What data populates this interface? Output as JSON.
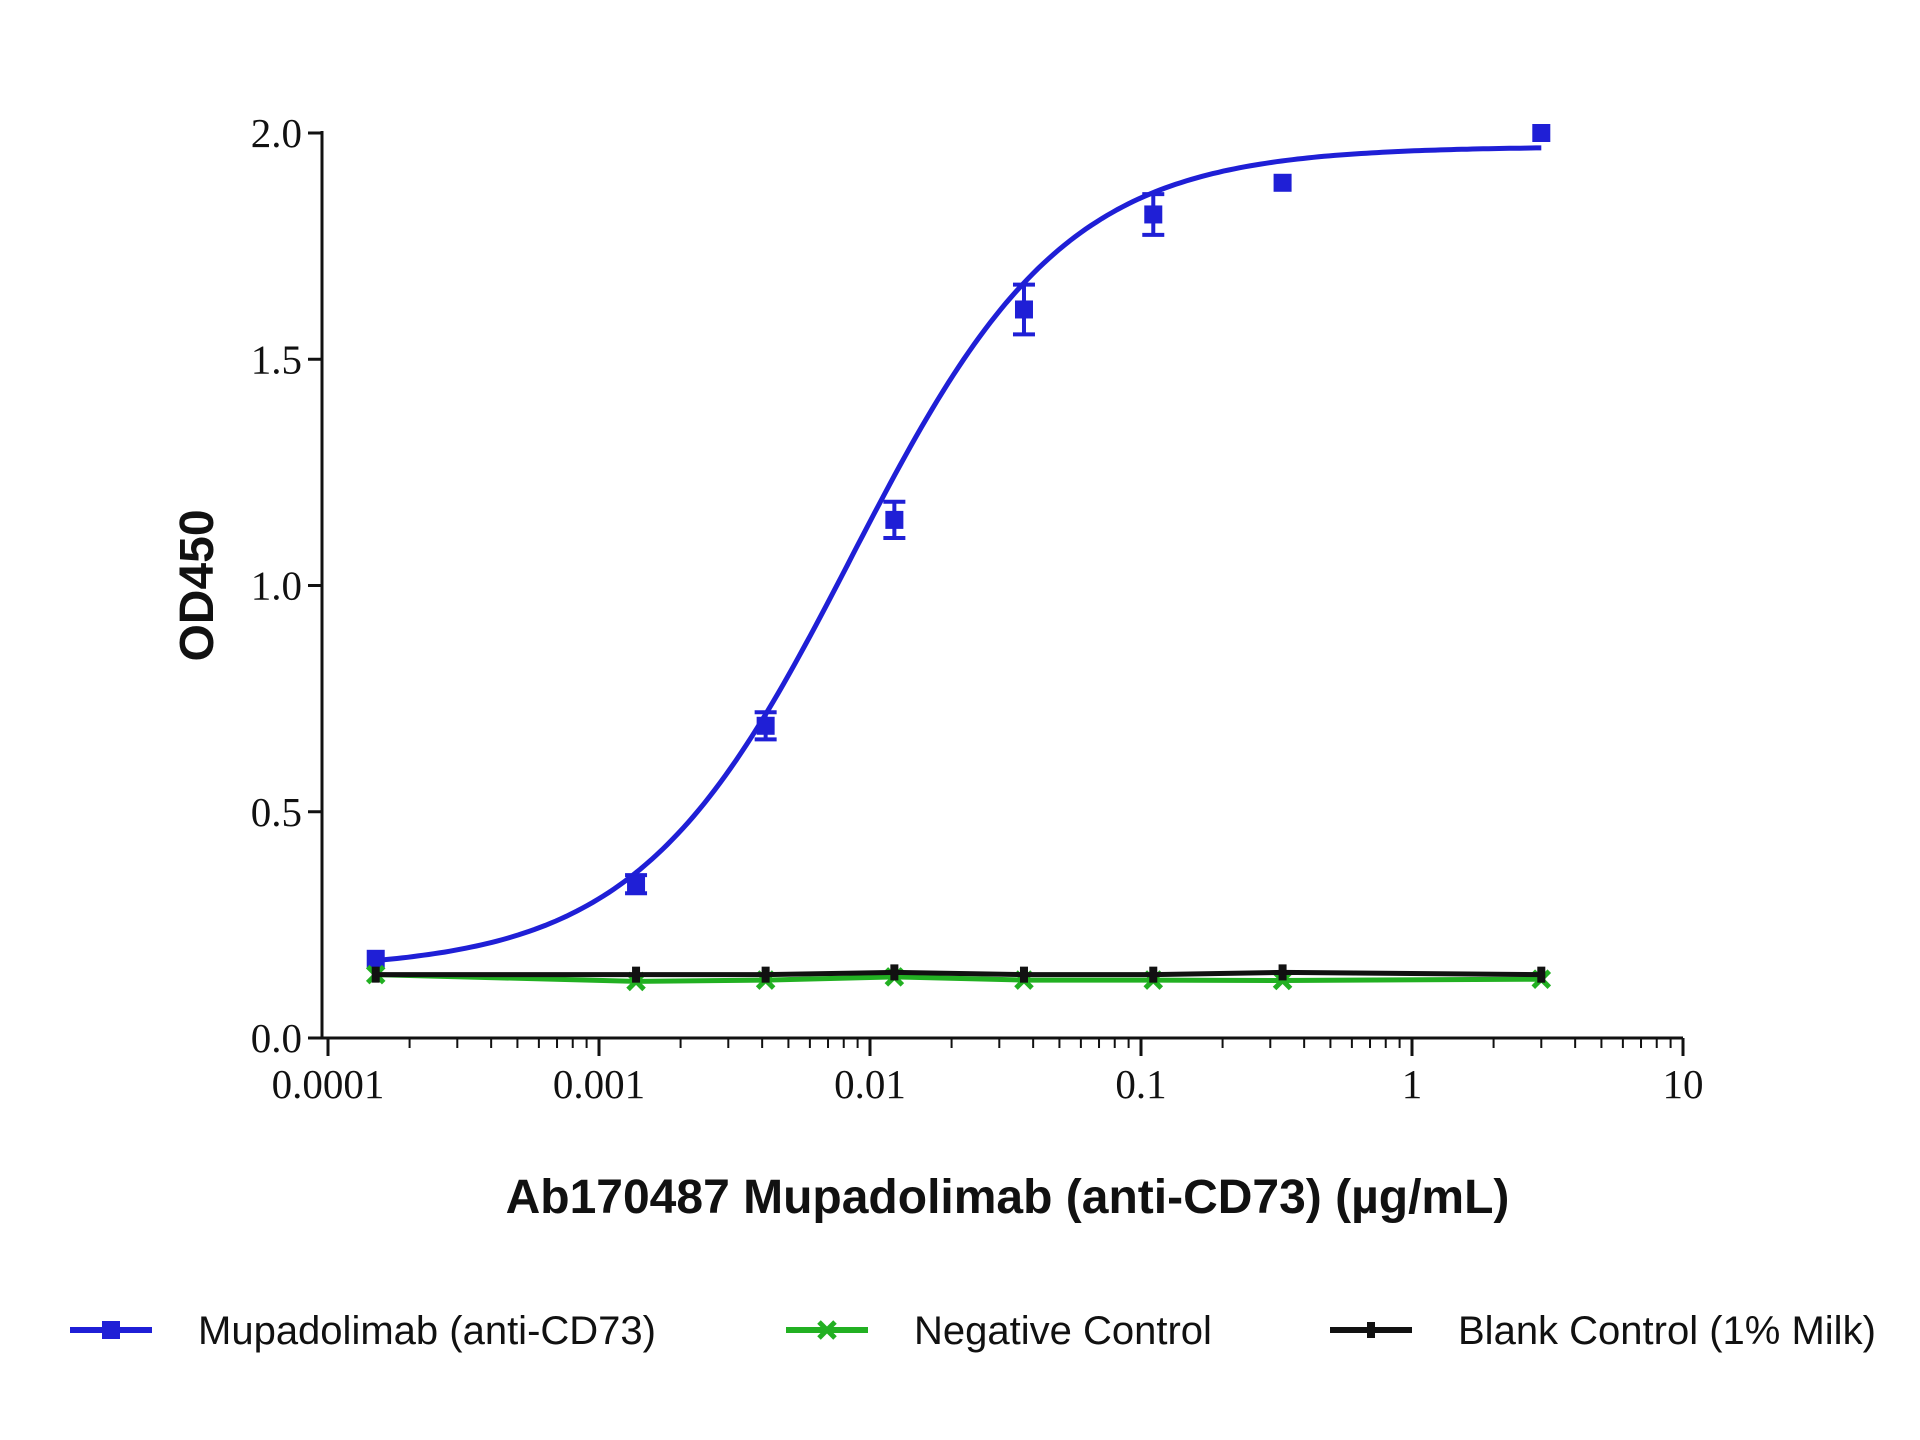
{
  "chart_data": {
    "type": "line",
    "x_scale": "log",
    "xlabel": "Ab170487 Mupadolimab (anti-CD73) (µg/mL)",
    "ylabel": "OD450",
    "xlim": [
      0.0001,
      10
    ],
    "ylim": [
      0,
      2.0
    ],
    "x_tick_labels": [
      "0.0001",
      "0.001",
      "0.01",
      "0.1",
      "1",
      "10"
    ],
    "y_tick_labels": [
      "0.0",
      "0.5",
      "1.0",
      "1.5",
      "2.0"
    ],
    "legend_placement": "bottom",
    "series": [
      {
        "name": "Mupadolimab (anti-CD73)",
        "color": "#1f1fd6",
        "marker": "square",
        "x": [
          0.00015,
          0.00137,
          0.00412,
          0.0123,
          0.037,
          0.111,
          0.333,
          3.0
        ],
        "y": [
          0.175,
          0.34,
          0.69,
          1.145,
          1.61,
          1.82,
          1.89,
          2.0
        ],
        "error": [
          0.0,
          0.02,
          0.03,
          0.04,
          0.055,
          0.045,
          0.0,
          0.0
        ],
        "fit_curve": {
          "model": "4PL",
          "bottom": 0.15,
          "top": 1.97,
          "ec50": 0.0085,
          "hill": 1.1
        }
      },
      {
        "name": "Negative Control",
        "color": "#22b022",
        "marker": "x",
        "x": [
          0.00015,
          0.00137,
          0.00412,
          0.0123,
          0.037,
          0.111,
          0.333,
          3.0
        ],
        "y": [
          0.14,
          0.125,
          0.128,
          0.135,
          0.128,
          0.128,
          0.127,
          0.13
        ]
      },
      {
        "name": "Blank Control (1% Milk)",
        "color": "#111111",
        "marker": "dash",
        "x": [
          0.00015,
          0.00137,
          0.00412,
          0.0123,
          0.037,
          0.111,
          0.333,
          3.0
        ],
        "y": [
          0.14,
          0.14,
          0.14,
          0.145,
          0.14,
          0.14,
          0.145,
          0.14
        ]
      }
    ]
  }
}
